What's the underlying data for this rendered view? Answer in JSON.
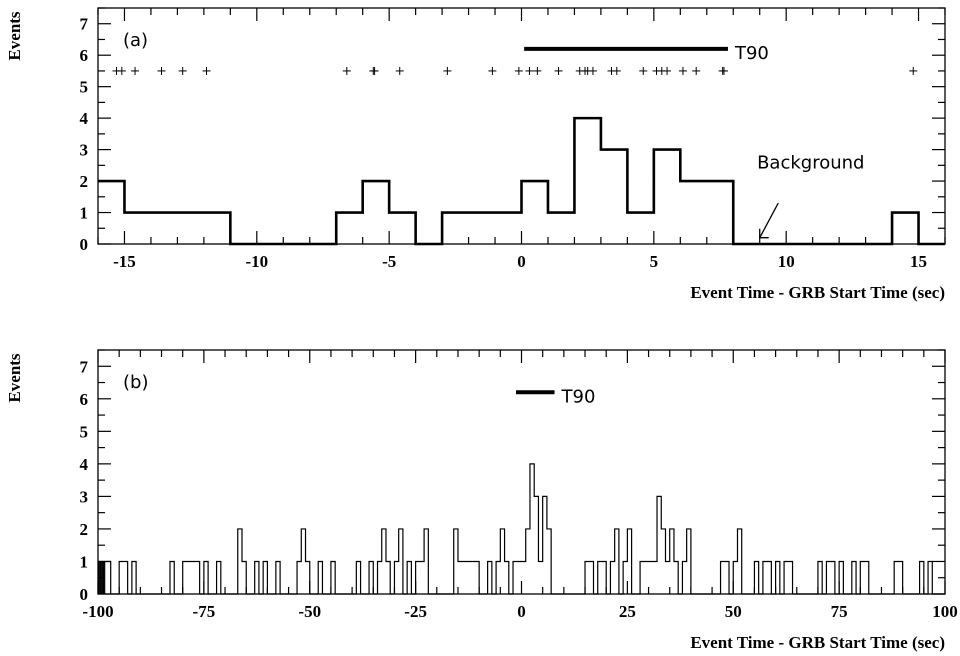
{
  "chart_data": [
    {
      "type": "histogram",
      "panel_label": "(a)",
      "xlabel": "Event Time - GRB Start Time (sec)",
      "ylabel": "Events",
      "xlim": [
        -16,
        16
      ],
      "ylim": [
        0,
        7.5
      ],
      "x_ticks": [
        -15,
        -10,
        -5,
        0,
        5,
        10,
        15
      ],
      "y_ticks": [
        0,
        1,
        2,
        3,
        4,
        5,
        6,
        7
      ],
      "bin_width": 1,
      "bin_start": -16,
      "counts": [
        2,
        1,
        1,
        1,
        1,
        0,
        0,
        0,
        0,
        1,
        2,
        1,
        0,
        1,
        1,
        1,
        2,
        1,
        4,
        3,
        1,
        3,
        2,
        2,
        0,
        0,
        0,
        0,
        0,
        0,
        1,
        0
      ],
      "event_times": [
        -15.3,
        -15.1,
        -14.6,
        -13.6,
        -12.8,
        -11.9,
        -6.6,
        -5.6,
        -5.55,
        -4.6,
        -2.8,
        -1.1,
        -0.1,
        0.3,
        0.6,
        1.4,
        2.2,
        2.4,
        2.5,
        2.7,
        3.4,
        3.6,
        4.6,
        5.1,
        5.3,
        5.5,
        6.1,
        6.6,
        7.6,
        7.65,
        14.8
      ],
      "event_marker_y": 5.5,
      "t90": [
        0.1,
        7.8
      ],
      "t90_y": 6.2,
      "t90_label": "T90",
      "annotation": "Background",
      "annotation_points_to": [
        9.0,
        0.2
      ]
    },
    {
      "type": "histogram",
      "panel_label": "(b)",
      "xlabel": "Event Time - GRB Start Time (sec)",
      "ylabel": "Events",
      "xlim": [
        -100,
        100
      ],
      "ylim": [
        0,
        7.5
      ],
      "x_ticks": [
        -100,
        -75,
        -50,
        -25,
        0,
        25,
        50,
        75,
        100
      ],
      "y_ticks": [
        0,
        1,
        2,
        3,
        4,
        5,
        6,
        7
      ],
      "bin_width": 1,
      "bin_start": -100,
      "counts": [
        1,
        1,
        1,
        0,
        0,
        1,
        1,
        0,
        1,
        0,
        0,
        0,
        0,
        0,
        0,
        0,
        0,
        1,
        0,
        0,
        1,
        1,
        1,
        1,
        0,
        1,
        0,
        0,
        1,
        0,
        0,
        0,
        0,
        2,
        1,
        0,
        0,
        1,
        0,
        1,
        0,
        0,
        1,
        0,
        0,
        0,
        0,
        1,
        2,
        1,
        0,
        0,
        1,
        0,
        0,
        1,
        0,
        0,
        0,
        0,
        0,
        1,
        0,
        0,
        1,
        0,
        1,
        2,
        1,
        0,
        1,
        2,
        0,
        1,
        0,
        1,
        1,
        2,
        0,
        0,
        0,
        0,
        0,
        0,
        2,
        1,
        1,
        1,
        1,
        1,
        0,
        0,
        1,
        0,
        1,
        2,
        1,
        0,
        1,
        1,
        1,
        2,
        4,
        3,
        1,
        3,
        2,
        0,
        0,
        0,
        0,
        0,
        0,
        0,
        0,
        1,
        1,
        0,
        1,
        1,
        0,
        1,
        2,
        0,
        1,
        2,
        0,
        0,
        1,
        1,
        1,
        1,
        3,
        2,
        1,
        2,
        1,
        0,
        1,
        2,
        0,
        0,
        0,
        0,
        0,
        0,
        0,
        1,
        1,
        0,
        1,
        2,
        0,
        0,
        0,
        1,
        0,
        1,
        1,
        0,
        1,
        0,
        1,
        1,
        0,
        0,
        0,
        0,
        0,
        0,
        1,
        0,
        1,
        1,
        0,
        1,
        0,
        0,
        1,
        0,
        1,
        1,
        0,
        0,
        0,
        0,
        0,
        0,
        1,
        1,
        0,
        0,
        0,
        0,
        1,
        0,
        1,
        0,
        0,
        0
      ],
      "rug_times": [
        -99.8,
        -99.6,
        -99.4,
        -99.2,
        -99.0,
        -98.8,
        -98.6,
        -98.4
      ],
      "t90": [
        -1.3,
        7.8
      ],
      "t90_y": 6.2,
      "t90_label": "T90"
    }
  ]
}
